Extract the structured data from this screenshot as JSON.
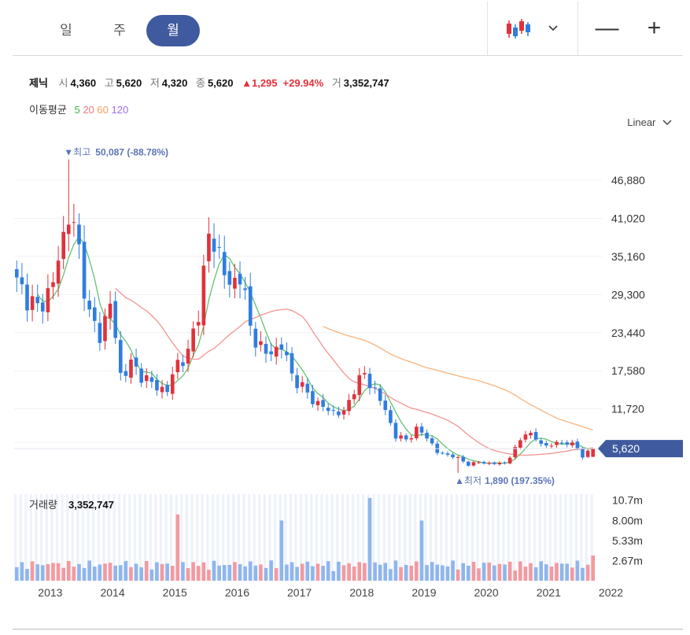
{
  "tabs": [
    {
      "label": "일",
      "active": false
    },
    {
      "label": "주",
      "active": false
    },
    {
      "label": "월",
      "active": true
    }
  ],
  "toolbar": {
    "chart_type_icon": "candlestick-icon",
    "dropdown_icon": "chevron-down-icon",
    "zoom_out_label": "—",
    "zoom_in_label": "+"
  },
  "info": {
    "name": "제닉",
    "open_label": "시",
    "open": "4,360",
    "high_label": "고",
    "high": "5,620",
    "low_label": "저",
    "low": "4,320",
    "close_label": "종",
    "close": "5,620",
    "change": "▲1,295",
    "change_pct": "+29.94%",
    "volume_label": "거",
    "volume": "3,352,747"
  },
  "ma": {
    "label": "이동평균",
    "periods": [
      {
        "label": "5",
        "color": "#3cb44b"
      },
      {
        "label": "20",
        "color": "#f07878"
      },
      {
        "label": "60",
        "color": "#f5a05a"
      },
      {
        "label": "120",
        "color": "#9b6bf0"
      }
    ]
  },
  "scale_label": "Linear",
  "colors": {
    "up": "#e0323b",
    "down": "#2f7de1",
    "accent": "#3f5a9e",
    "marker": "#5a75b8"
  },
  "chart_data": {
    "type": "candlestick",
    "interval": "monthly",
    "x_ticks": [
      "2013",
      "2014",
      "2015",
      "2016",
      "2017",
      "2018",
      "2019",
      "2020",
      "2021",
      "2022"
    ],
    "y_ticks": [
      "46,880",
      "41,020",
      "35,160",
      "29,300",
      "23,440",
      "17,580",
      "11,720"
    ],
    "ylim": [
      2000,
      51000
    ],
    "current_price_label": "5,620",
    "current_price": 5620,
    "high_marker": {
      "text": "▼최고",
      "value_text": "50,087 (-88.78%)",
      "value": 50087
    },
    "low_marker": {
      "text": "▲최저",
      "value_text": "1,890 (197.35%)",
      "value": 1890
    },
    "volume": {
      "label": "거래량",
      "value": "3,352,747",
      "y_ticks": [
        "10.7m",
        "8.00m",
        "5.33m",
        "2.67m"
      ],
      "max": 11500000
    },
    "anchors": [
      [
        0,
        31000
      ],
      [
        4,
        27000
      ],
      [
        7,
        31000
      ],
      [
        10,
        42000
      ],
      [
        12,
        36000
      ],
      [
        14,
        26000
      ],
      [
        16,
        23000
      ],
      [
        18,
        28000
      ],
      [
        20,
        17000
      ],
      [
        22,
        18500
      ],
      [
        24,
        17000
      ],
      [
        26,
        15500
      ],
      [
        29,
        14500
      ],
      [
        31,
        19000
      ],
      [
        33,
        20000
      ],
      [
        35,
        27000
      ],
      [
        37,
        38000
      ],
      [
        39,
        36000
      ],
      [
        41,
        30000
      ],
      [
        43,
        33000
      ],
      [
        45,
        24000
      ],
      [
        48,
        20000
      ],
      [
        51,
        21500
      ],
      [
        53,
        17000
      ],
      [
        56,
        14000
      ],
      [
        58,
        12500
      ],
      [
        60,
        11500
      ],
      [
        63,
        11000
      ],
      [
        65,
        15000
      ],
      [
        67,
        17000
      ],
      [
        69,
        14500
      ],
      [
        71,
        11500
      ],
      [
        73,
        7500
      ],
      [
        75,
        7000
      ],
      [
        77,
        8500
      ],
      [
        79,
        7500
      ],
      [
        81,
        5000
      ],
      [
        84,
        4500
      ],
      [
        87,
        3200
      ],
      [
        89,
        3500
      ],
      [
        92,
        3300
      ],
      [
        94,
        3400
      ],
      [
        96,
        5500
      ],
      [
        98,
        8300
      ],
      [
        100,
        7000
      ],
      [
        102,
        6000
      ],
      [
        104,
        6400
      ],
      [
        106,
        6600
      ],
      [
        108,
        5700
      ],
      [
        109,
        4500
      ],
      [
        111,
        5620
      ]
    ],
    "ma_labels": [
      "5",
      "20",
      "60",
      "120"
    ]
  }
}
